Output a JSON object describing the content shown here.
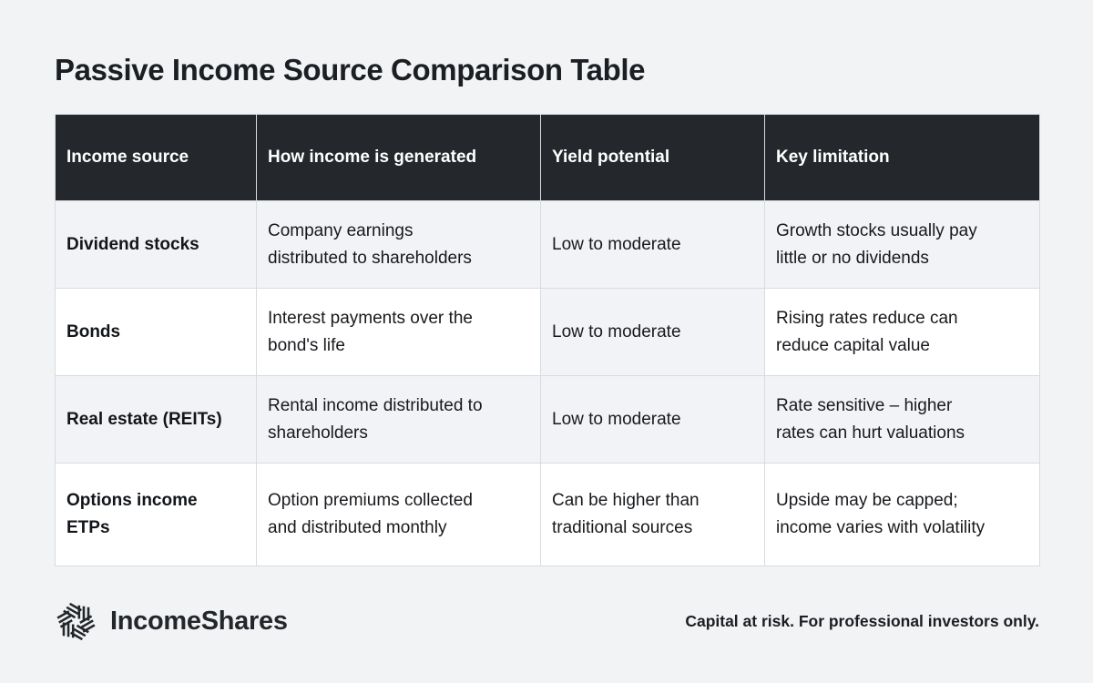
{
  "page_title": "Passive Income Source Comparison Table",
  "chart_data": {
    "type": "table",
    "title": "Passive Income Source Comparison Table",
    "columns": [
      "Income source",
      "How income is generated",
      "Yield potential",
      "Key limitation"
    ],
    "rows": [
      [
        "Dividend stocks",
        "Company earnings\ndistributed to shareholders",
        "Low to moderate",
        "Growth stocks usually pay\nlittle or no dividends"
      ],
      [
        "Bonds",
        "Interest payments over the\nbond's life",
        "Low to moderate",
        "Rising rates reduce can\nreduce capital value"
      ],
      [
        "Real estate (REITs)",
        "Rental income distributed to\nshareholders",
        "Low to moderate",
        "Rate sensitive – higher\nrates can hurt valuations"
      ],
      [
        "Options income\nETPs",
        "Option premiums collected\nand distributed monthly",
        "Can be higher than\ntraditional sources",
        "Upside may be capped;\nincome varies with volatility"
      ]
    ],
    "row_striping": [
      "gray",
      "white",
      "gray",
      "white"
    ],
    "shaded_cells": [
      {
        "row": 1,
        "col": 2
      }
    ],
    "legend_position": "none",
    "grid": true
  },
  "footer": {
    "brand": "IncomeShares",
    "logo_icon": "hexagonal-pinwheel-logo-icon",
    "disclaimer": "Capital at risk. For professional investors only."
  },
  "colors": {
    "page_background": "#f2f3f5",
    "header_background": "#24282c",
    "header_text": "#ffffff",
    "row_gray": "#f2f3f6",
    "row_white": "#ffffff",
    "cell_border": "#d8dbdf",
    "body_text": "#17191d",
    "brand_text": "#23272b"
  }
}
